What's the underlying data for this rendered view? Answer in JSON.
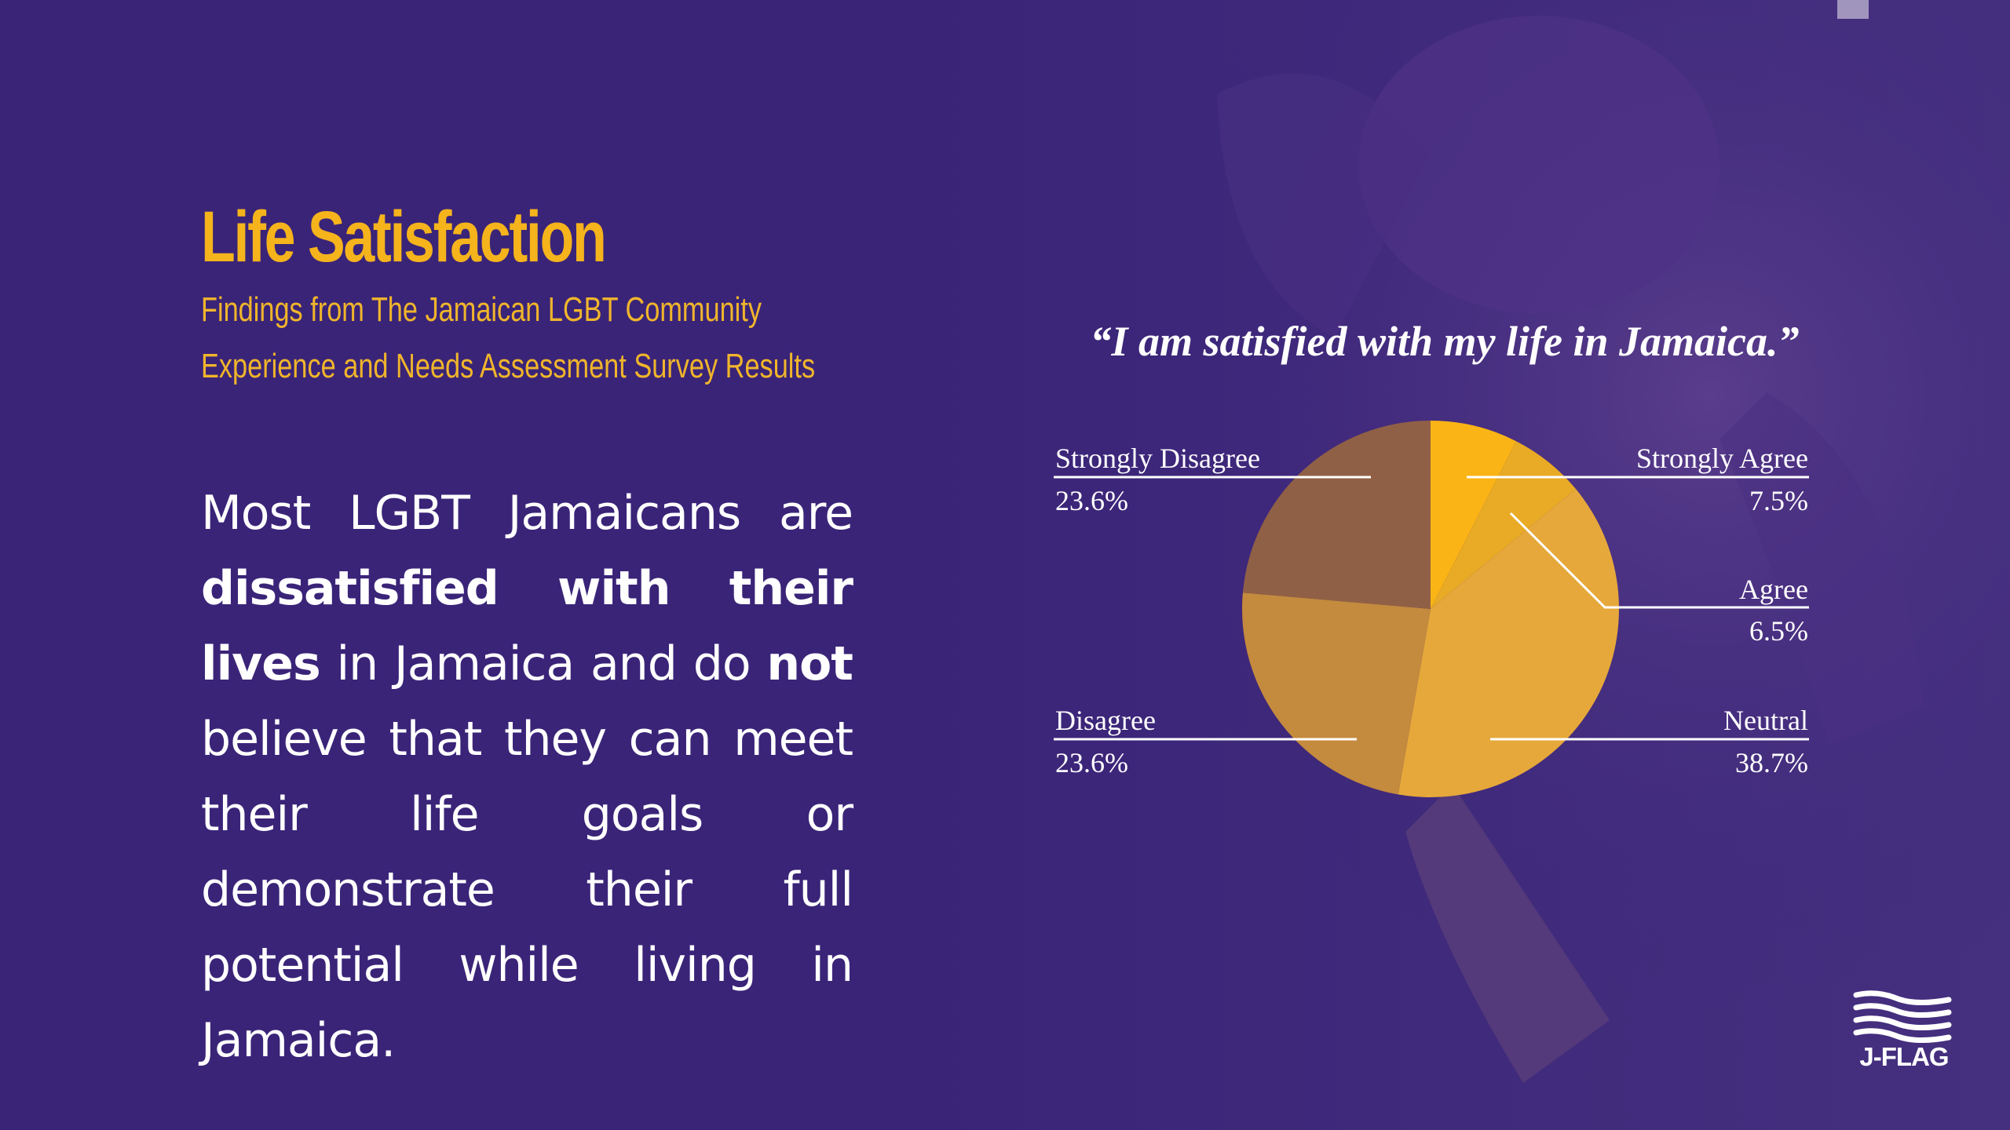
{
  "slide": {
    "title": "Life Satisfaction",
    "subtitle_line1": "Findings from The Jamaican LGBT Community",
    "subtitle_line2": "Experience and Needs Assessment Survey Results",
    "body": {
      "part1": "Most LGBT Jamaicans are ",
      "bold1": "dissatisfied with their lives",
      "part2": " in Jamaica and do ",
      "bold2": "not",
      "part3": " believe that they can meet their life goals or demonstrate their full potential while living in Jamaica."
    },
    "logo_text": "J-FLAG"
  },
  "colors": {
    "background": "#3a2478",
    "title": "#f5b31c",
    "subtitle": "#f0b52b",
    "text": "#ffffff",
    "strongly_agree": "#fbb415",
    "agree": "#e9aa25",
    "neutral": "#e6a83a",
    "disagree": "#c48a3d",
    "strongly_disagree": "#906046"
  },
  "chart_data": {
    "type": "pie",
    "title": "“I am satisfied with my life in Jamaica.”",
    "slices": [
      {
        "label": "Strongly Agree",
        "value": 7.5,
        "display": "7.5%",
        "color": "#fbb415"
      },
      {
        "label": "Agree",
        "value": 6.5,
        "display": "6.5%",
        "color": "#e9aa25"
      },
      {
        "label": "Neutral",
        "value": 38.7,
        "display": "38.7%",
        "color": "#e6a83a"
      },
      {
        "label": "Disagree",
        "value": 23.6,
        "display": "23.6%",
        "color": "#c48a3d"
      },
      {
        "label": "Strongly Disagree",
        "value": 23.6,
        "display": "23.6%",
        "color": "#906046"
      }
    ]
  }
}
